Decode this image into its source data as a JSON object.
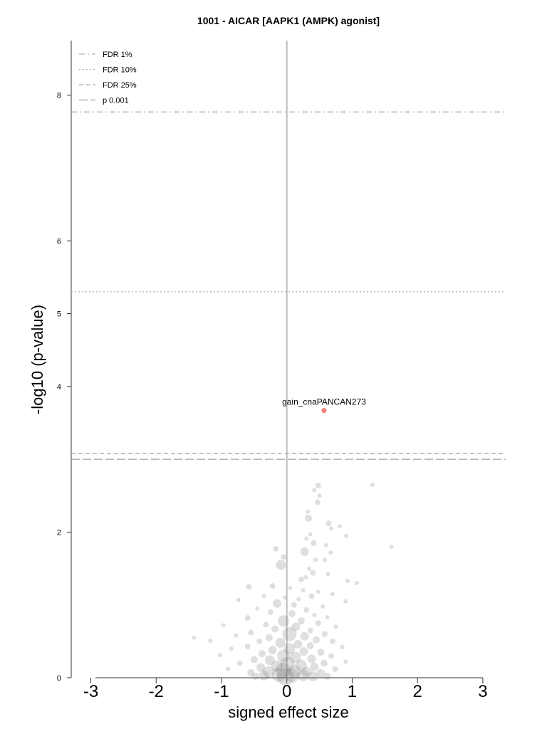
{
  "chart_data": {
    "type": "scatter",
    "title": "1001 - AICAR [AAPK1 (AMPK) agonist]",
    "xlabel": "signed effect size",
    "ylabel": "-log10 (p-value)",
    "xlim": [
      -3.3,
      3.35
    ],
    "ylim": [
      0,
      8.75
    ],
    "xticks": [
      -3,
      -2,
      -1,
      0,
      1,
      2,
      3
    ],
    "yticks": [
      0,
      2,
      4,
      5,
      6,
      8
    ],
    "grid": false,
    "legend_position": "top-left",
    "thresholds": [
      {
        "name": "FDR 1%",
        "y": 7.77,
        "style": "dashdot",
        "color": "#b0b0b0"
      },
      {
        "name": "FDR 10%",
        "y": 5.3,
        "style": "dotted",
        "color": "#b0b0b0"
      },
      {
        "name": "FDR 25%",
        "y": 3.08,
        "style": "dashed",
        "color": "#a8a8a8"
      },
      {
        "name": "p 0.001",
        "y": 3.0,
        "style": "longdash",
        "color": "#a0a0a0"
      }
    ],
    "highlight": {
      "label": "gain_cnaPANCAN273",
      "x": 0.57,
      "y": 3.67,
      "color": "#f08080"
    },
    "points": [
      {
        "x": 0.48,
        "y": 2.64,
        "s": 4
      },
      {
        "x": 0.42,
        "y": 2.58,
        "s": 3
      },
      {
        "x": 1.31,
        "y": 2.65,
        "s": 3
      },
      {
        "x": 0.5,
        "y": 2.5,
        "s": 3
      },
      {
        "x": 0.47,
        "y": 2.41,
        "s": 4
      },
      {
        "x": 0.32,
        "y": 2.28,
        "s": 3
      },
      {
        "x": 0.33,
        "y": 2.19,
        "s": 5
      },
      {
        "x": 0.64,
        "y": 2.12,
        "s": 4
      },
      {
        "x": 0.81,
        "y": 2.08,
        "s": 3
      },
      {
        "x": 0.68,
        "y": 2.05,
        "s": 3
      },
      {
        "x": 0.36,
        "y": 1.97,
        "s": 3
      },
      {
        "x": 0.91,
        "y": 1.95,
        "s": 3
      },
      {
        "x": 0.3,
        "y": 1.91,
        "s": 3
      },
      {
        "x": 0.41,
        "y": 1.85,
        "s": 4
      },
      {
        "x": 1.6,
        "y": 1.8,
        "s": 3
      },
      {
        "x": 0.6,
        "y": 1.82,
        "s": 3
      },
      {
        "x": -0.17,
        "y": 1.77,
        "s": 4
      },
      {
        "x": 0.27,
        "y": 1.73,
        "s": 6
      },
      {
        "x": 0.67,
        "y": 1.72,
        "s": 3
      },
      {
        "x": -0.05,
        "y": 1.66,
        "s": 4
      },
      {
        "x": 0.44,
        "y": 1.62,
        "s": 3
      },
      {
        "x": 0.58,
        "y": 1.62,
        "s": 3
      },
      {
        "x": -0.09,
        "y": 1.55,
        "s": 7
      },
      {
        "x": 0.34,
        "y": 1.5,
        "s": 3
      },
      {
        "x": 0.4,
        "y": 1.44,
        "s": 4
      },
      {
        "x": 0.63,
        "y": 1.42,
        "s": 3
      },
      {
        "x": 0.29,
        "y": 1.38,
        "s": 3
      },
      {
        "x": 0.22,
        "y": 1.35,
        "s": 4
      },
      {
        "x": 0.93,
        "y": 1.33,
        "s": 3
      },
      {
        "x": 1.07,
        "y": 1.3,
        "s": 3
      },
      {
        "x": -0.58,
        "y": 1.25,
        "s": 4
      },
      {
        "x": -0.22,
        "y": 1.26,
        "s": 4
      },
      {
        "x": 0.05,
        "y": 1.23,
        "s": 3
      },
      {
        "x": 0.25,
        "y": 1.2,
        "s": 3
      },
      {
        "x": 0.48,
        "y": 1.18,
        "s": 3
      },
      {
        "x": 0.7,
        "y": 1.15,
        "s": 3
      },
      {
        "x": -0.35,
        "y": 1.12,
        "s": 3
      },
      {
        "x": 0.38,
        "y": 1.12,
        "s": 4
      },
      {
        "x": -0.03,
        "y": 1.1,
        "s": 3
      },
      {
        "x": 0.18,
        "y": 1.08,
        "s": 3
      },
      {
        "x": -0.74,
        "y": 1.07,
        "s": 3
      },
      {
        "x": 0.9,
        "y": 1.05,
        "s": 3
      },
      {
        "x": -0.15,
        "y": 1.02,
        "s": 6
      },
      {
        "x": 0.11,
        "y": 1.0,
        "s": 4
      },
      {
        "x": 0.55,
        "y": 0.98,
        "s": 3
      },
      {
        "x": -0.45,
        "y": 0.95,
        "s": 3
      },
      {
        "x": 0.3,
        "y": 0.93,
        "s": 4
      },
      {
        "x": -0.25,
        "y": 0.9,
        "s": 4
      },
      {
        "x": 0.08,
        "y": 0.88,
        "s": 5
      },
      {
        "x": 0.42,
        "y": 0.86,
        "s": 3
      },
      {
        "x": -0.6,
        "y": 0.82,
        "s": 4
      },
      {
        "x": 0.62,
        "y": 0.83,
        "s": 3
      },
      {
        "x": -0.05,
        "y": 0.78,
        "s": 8
      },
      {
        "x": 0.22,
        "y": 0.78,
        "s": 5
      },
      {
        "x": 0.48,
        "y": 0.75,
        "s": 4
      },
      {
        "x": -0.32,
        "y": 0.73,
        "s": 4
      },
      {
        "x": 0.75,
        "y": 0.7,
        "s": 3
      },
      {
        "x": -0.97,
        "y": 0.72,
        "s": 3
      },
      {
        "x": 0.14,
        "y": 0.7,
        "s": 6
      },
      {
        "x": -0.18,
        "y": 0.67,
        "s": 5
      },
      {
        "x": 0.36,
        "y": 0.65,
        "s": 4
      },
      {
        "x": -0.55,
        "y": 0.62,
        "s": 4
      },
      {
        "x": 0.58,
        "y": 0.6,
        "s": 4
      },
      {
        "x": -0.78,
        "y": 0.58,
        "s": 3
      },
      {
        "x": 0.04,
        "y": 0.6,
        "s": 10
      },
      {
        "x": 0.27,
        "y": 0.57,
        "s": 6
      },
      {
        "x": -0.27,
        "y": 0.55,
        "s": 5
      },
      {
        "x": 0.45,
        "y": 0.52,
        "s": 5
      },
      {
        "x": -1.42,
        "y": 0.55,
        "s": 3
      },
      {
        "x": -1.17,
        "y": 0.51,
        "s": 3
      },
      {
        "x": -0.42,
        "y": 0.5,
        "s": 4
      },
      {
        "x": 0.7,
        "y": 0.5,
        "s": 4
      },
      {
        "x": -0.1,
        "y": 0.48,
        "s": 7
      },
      {
        "x": 0.17,
        "y": 0.46,
        "s": 6
      },
      {
        "x": 0.36,
        "y": 0.44,
        "s": 5
      },
      {
        "x": -0.6,
        "y": 0.43,
        "s": 4
      },
      {
        "x": 0.85,
        "y": 0.42,
        "s": 3
      },
      {
        "x": -0.85,
        "y": 0.4,
        "s": 3
      },
      {
        "x": 0.04,
        "y": 0.4,
        "s": 8
      },
      {
        "x": -0.22,
        "y": 0.38,
        "s": 6
      },
      {
        "x": 0.26,
        "y": 0.36,
        "s": 6
      },
      {
        "x": 0.52,
        "y": 0.35,
        "s": 5
      },
      {
        "x": -0.38,
        "y": 0.33,
        "s": 5
      },
      {
        "x": -1.02,
        "y": 0.31,
        "s": 3
      },
      {
        "x": 0.68,
        "y": 0.3,
        "s": 4
      },
      {
        "x": -0.05,
        "y": 0.3,
        "s": 9
      },
      {
        "x": 0.13,
        "y": 0.28,
        "s": 8
      },
      {
        "x": 0.38,
        "y": 0.26,
        "s": 6
      },
      {
        "x": -0.5,
        "y": 0.25,
        "s": 5
      },
      {
        "x": -0.26,
        "y": 0.24,
        "s": 7
      },
      {
        "x": 0.9,
        "y": 0.22,
        "s": 3
      },
      {
        "x": -0.72,
        "y": 0.2,
        "s": 4
      },
      {
        "x": 0.57,
        "y": 0.2,
        "s": 5
      },
      {
        "x": 0.01,
        "y": 0.19,
        "s": 10
      },
      {
        "x": 0.22,
        "y": 0.17,
        "s": 8
      },
      {
        "x": -0.15,
        "y": 0.16,
        "s": 8
      },
      {
        "x": 0.42,
        "y": 0.15,
        "s": 6
      },
      {
        "x": -0.4,
        "y": 0.14,
        "s": 6
      },
      {
        "x": -0.9,
        "y": 0.12,
        "s": 3
      },
      {
        "x": 0.74,
        "y": 0.12,
        "s": 4
      },
      {
        "x": -0.06,
        "y": 0.1,
        "s": 11
      },
      {
        "x": 0.12,
        "y": 0.09,
        "s": 9
      },
      {
        "x": 0.3,
        "y": 0.08,
        "s": 7
      },
      {
        "x": -0.28,
        "y": 0.08,
        "s": 8
      },
      {
        "x": -0.55,
        "y": 0.07,
        "s": 5
      },
      {
        "x": 0.52,
        "y": 0.06,
        "s": 6
      },
      {
        "x": -0.12,
        "y": 0.04,
        "s": 10
      },
      {
        "x": 0.08,
        "y": 0.03,
        "s": 10
      },
      {
        "x": 0.25,
        "y": 0.03,
        "s": 8
      },
      {
        "x": -0.35,
        "y": 0.03,
        "s": 7
      },
      {
        "x": 0.4,
        "y": 0.02,
        "s": 7
      },
      {
        "x": -0.48,
        "y": 0.02,
        "s": 5
      },
      {
        "x": 0.62,
        "y": 0.02,
        "s": 5
      },
      {
        "x": -0.02,
        "y": 0.01,
        "s": 12
      }
    ]
  }
}
